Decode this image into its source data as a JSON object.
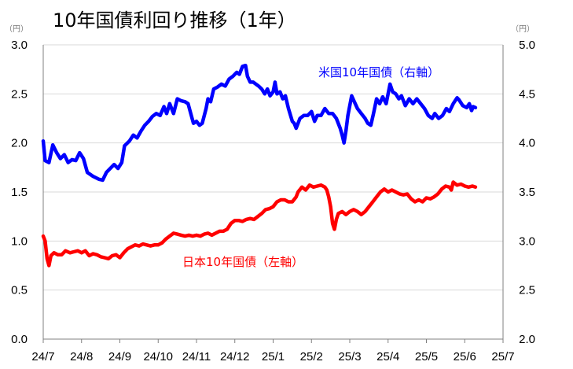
{
  "chart_data": {
    "type": "line",
    "title": "10年国債利回り推移（1年）",
    "left_unit": "（円）",
    "right_unit": "（円）",
    "y_left": {
      "min": 0.0,
      "max": 3.0,
      "ticks": [
        "0.0",
        "0.5",
        "1.0",
        "1.5",
        "2.0",
        "2.5",
        "3.0"
      ]
    },
    "y_right": {
      "min": 2.0,
      "max": 5.0,
      "ticks": [
        "2.0",
        "2.5",
        "3.0",
        "3.5",
        "4.0",
        "4.5",
        "5.0"
      ]
    },
    "x_ticks": [
      "24/7",
      "24/8",
      "24/9",
      "24/10",
      "24/11",
      "24/12",
      "25/1",
      "25/2",
      "25/3",
      "25/4",
      "25/5",
      "25/6",
      "25/7"
    ],
    "grid": true,
    "legend": "inline",
    "series": [
      {
        "name": "米国10年国債（右軸）",
        "axis": "right",
        "color": "#0000ff",
        "points": [
          [
            0.0,
            4.02
          ],
          [
            0.05,
            3.82
          ],
          [
            0.15,
            3.8
          ],
          [
            0.25,
            3.98
          ],
          [
            0.35,
            3.9
          ],
          [
            0.45,
            3.84
          ],
          [
            0.55,
            3.88
          ],
          [
            0.65,
            3.8
          ],
          [
            0.75,
            3.83
          ],
          [
            0.85,
            3.82
          ],
          [
            0.95,
            3.9
          ],
          [
            1.05,
            3.84
          ],
          [
            1.15,
            3.7
          ],
          [
            1.3,
            3.66
          ],
          [
            1.45,
            3.63
          ],
          [
            1.55,
            3.62
          ],
          [
            1.65,
            3.7
          ],
          [
            1.75,
            3.74
          ],
          [
            1.85,
            3.78
          ],
          [
            1.95,
            3.74
          ],
          [
            2.05,
            3.8
          ],
          [
            2.12,
            3.97
          ],
          [
            2.25,
            4.02
          ],
          [
            2.35,
            4.08
          ],
          [
            2.45,
            4.05
          ],
          [
            2.55,
            4.12
          ],
          [
            2.65,
            4.18
          ],
          [
            2.75,
            4.22
          ],
          [
            2.85,
            4.27
          ],
          [
            2.95,
            4.3
          ],
          [
            3.05,
            4.28
          ],
          [
            3.15,
            4.37
          ],
          [
            3.22,
            4.3
          ],
          [
            3.3,
            4.4
          ],
          [
            3.4,
            4.3
          ],
          [
            3.5,
            4.45
          ],
          [
            3.6,
            4.43
          ],
          [
            3.7,
            4.42
          ],
          [
            3.78,
            4.4
          ],
          [
            3.85,
            4.3
          ],
          [
            3.92,
            4.2
          ],
          [
            4.0,
            4.22
          ],
          [
            4.08,
            4.18
          ],
          [
            4.15,
            4.2
          ],
          [
            4.25,
            4.35
          ],
          [
            4.3,
            4.45
          ],
          [
            4.37,
            4.42
          ],
          [
            4.45,
            4.55
          ],
          [
            4.55,
            4.57
          ],
          [
            4.65,
            4.6
          ],
          [
            4.75,
            4.58
          ],
          [
            4.85,
            4.65
          ],
          [
            4.95,
            4.68
          ],
          [
            5.05,
            4.72
          ],
          [
            5.12,
            4.7
          ],
          [
            5.2,
            4.78
          ],
          [
            5.28,
            4.79
          ],
          [
            5.33,
            4.68
          ],
          [
            5.4,
            4.62
          ],
          [
            5.48,
            4.62
          ],
          [
            5.55,
            4.6
          ],
          [
            5.62,
            4.58
          ],
          [
            5.7,
            4.55
          ],
          [
            5.78,
            4.5
          ],
          [
            5.85,
            4.55
          ],
          [
            5.92,
            4.48
          ],
          [
            6.0,
            4.52
          ],
          [
            6.05,
            4.62
          ],
          [
            6.1,
            4.5
          ],
          [
            6.18,
            4.52
          ],
          [
            6.25,
            4.45
          ],
          [
            6.32,
            4.48
          ],
          [
            6.4,
            4.35
          ],
          [
            6.5,
            4.22
          ],
          [
            6.55,
            4.2
          ],
          [
            6.6,
            4.15
          ],
          [
            6.7,
            4.25
          ],
          [
            6.8,
            4.28
          ],
          [
            6.9,
            4.28
          ],
          [
            7.0,
            4.32
          ],
          [
            7.08,
            4.22
          ],
          [
            7.15,
            4.28
          ],
          [
            7.25,
            4.28
          ],
          [
            7.35,
            4.35
          ],
          [
            7.45,
            4.3
          ],
          [
            7.55,
            4.3
          ],
          [
            7.65,
            4.25
          ],
          [
            7.75,
            4.15
          ],
          [
            7.8,
            4.08
          ],
          [
            7.85,
            4.0
          ],
          [
            7.9,
            4.12
          ],
          [
            7.95,
            4.28
          ],
          [
            8.05,
            4.48
          ],
          [
            8.12,
            4.42
          ],
          [
            8.2,
            4.35
          ],
          [
            8.3,
            4.3
          ],
          [
            8.4,
            4.25
          ],
          [
            8.47,
            4.2
          ],
          [
            8.55,
            4.18
          ],
          [
            8.62,
            4.3
          ],
          [
            8.7,
            4.45
          ],
          [
            8.78,
            4.4
          ],
          [
            8.86,
            4.47
          ],
          [
            8.95,
            4.4
          ],
          [
            9.05,
            4.6
          ],
          [
            9.12,
            4.52
          ],
          [
            9.2,
            4.5
          ],
          [
            9.28,
            4.45
          ],
          [
            9.35,
            4.48
          ],
          [
            9.45,
            4.38
          ],
          [
            9.55,
            4.45
          ],
          [
            9.65,
            4.4
          ],
          [
            9.75,
            4.45
          ],
          [
            9.85,
            4.4
          ],
          [
            9.95,
            4.35
          ],
          [
            10.05,
            4.28
          ],
          [
            10.15,
            4.25
          ],
          [
            10.22,
            4.3
          ],
          [
            10.32,
            4.25
          ],
          [
            10.42,
            4.28
          ],
          [
            10.52,
            4.35
          ],
          [
            10.6,
            4.32
          ],
          [
            10.7,
            4.4
          ],
          [
            10.8,
            4.46
          ],
          [
            10.85,
            4.44
          ],
          [
            10.95,
            4.38
          ],
          [
            11.05,
            4.36
          ],
          [
            11.12,
            4.4
          ],
          [
            11.18,
            4.33
          ],
          [
            11.22,
            4.37
          ],
          [
            11.28,
            4.36
          ]
        ]
      },
      {
        "name": "日本10年国債（左軸）",
        "axis": "left",
        "color": "#ff0000",
        "points": [
          [
            0.0,
            1.05
          ],
          [
            0.05,
            1.0
          ],
          [
            0.1,
            0.82
          ],
          [
            0.15,
            0.75
          ],
          [
            0.2,
            0.85
          ],
          [
            0.28,
            0.88
          ],
          [
            0.38,
            0.86
          ],
          [
            0.48,
            0.86
          ],
          [
            0.58,
            0.9
          ],
          [
            0.7,
            0.88
          ],
          [
            0.8,
            0.89
          ],
          [
            0.9,
            0.9
          ],
          [
            1.0,
            0.88
          ],
          [
            1.1,
            0.9
          ],
          [
            1.2,
            0.85
          ],
          [
            1.3,
            0.87
          ],
          [
            1.4,
            0.86
          ],
          [
            1.5,
            0.84
          ],
          [
            1.6,
            0.83
          ],
          [
            1.7,
            0.82
          ],
          [
            1.8,
            0.85
          ],
          [
            1.9,
            0.86
          ],
          [
            2.0,
            0.83
          ],
          [
            2.1,
            0.88
          ],
          [
            2.2,
            0.92
          ],
          [
            2.3,
            0.94
          ],
          [
            2.4,
            0.96
          ],
          [
            2.5,
            0.95
          ],
          [
            2.6,
            0.97
          ],
          [
            2.7,
            0.96
          ],
          [
            2.8,
            0.95
          ],
          [
            2.9,
            0.96
          ],
          [
            3.0,
            0.96
          ],
          [
            3.1,
            0.98
          ],
          [
            3.2,
            1.02
          ],
          [
            3.3,
            1.05
          ],
          [
            3.4,
            1.08
          ],
          [
            3.5,
            1.07
          ],
          [
            3.6,
            1.06
          ],
          [
            3.7,
            1.05
          ],
          [
            3.8,
            1.06
          ],
          [
            3.9,
            1.05
          ],
          [
            4.0,
            1.06
          ],
          [
            4.1,
            1.05
          ],
          [
            4.2,
            1.07
          ],
          [
            4.3,
            1.08
          ],
          [
            4.4,
            1.06
          ],
          [
            4.5,
            1.08
          ],
          [
            4.6,
            1.1
          ],
          [
            4.7,
            1.1
          ],
          [
            4.8,
            1.12
          ],
          [
            4.9,
            1.18
          ],
          [
            5.0,
            1.21
          ],
          [
            5.1,
            1.21
          ],
          [
            5.2,
            1.2
          ],
          [
            5.3,
            1.22
          ],
          [
            5.4,
            1.23
          ],
          [
            5.5,
            1.22
          ],
          [
            5.6,
            1.25
          ],
          [
            5.7,
            1.28
          ],
          [
            5.8,
            1.32
          ],
          [
            5.9,
            1.33
          ],
          [
            6.0,
            1.35
          ],
          [
            6.1,
            1.4
          ],
          [
            6.2,
            1.42
          ],
          [
            6.3,
            1.42
          ],
          [
            6.4,
            1.4
          ],
          [
            6.5,
            1.4
          ],
          [
            6.6,
            1.45
          ],
          [
            6.65,
            1.5
          ],
          [
            6.75,
            1.55
          ],
          [
            6.85,
            1.52
          ],
          [
            6.95,
            1.57
          ],
          [
            7.05,
            1.55
          ],
          [
            7.15,
            1.56
          ],
          [
            7.25,
            1.57
          ],
          [
            7.35,
            1.55
          ],
          [
            7.4,
            1.52
          ],
          [
            7.45,
            1.45
          ],
          [
            7.5,
            1.35
          ],
          [
            7.55,
            1.18
          ],
          [
            7.6,
            1.12
          ],
          [
            7.65,
            1.22
          ],
          [
            7.7,
            1.28
          ],
          [
            7.8,
            1.3
          ],
          [
            7.9,
            1.27
          ],
          [
            8.0,
            1.3
          ],
          [
            8.1,
            1.32
          ],
          [
            8.2,
            1.3
          ],
          [
            8.3,
            1.27
          ],
          [
            8.4,
            1.3
          ],
          [
            8.5,
            1.35
          ],
          [
            8.6,
            1.4
          ],
          [
            8.7,
            1.45
          ],
          [
            8.8,
            1.5
          ],
          [
            8.9,
            1.53
          ],
          [
            9.0,
            1.5
          ],
          [
            9.1,
            1.52
          ],
          [
            9.2,
            1.5
          ],
          [
            9.3,
            1.48
          ],
          [
            9.4,
            1.47
          ],
          [
            9.5,
            1.48
          ],
          [
            9.6,
            1.43
          ],
          [
            9.7,
            1.4
          ],
          [
            9.8,
            1.42
          ],
          [
            9.9,
            1.4
          ],
          [
            10.0,
            1.44
          ],
          [
            10.1,
            1.43
          ],
          [
            10.2,
            1.45
          ],
          [
            10.3,
            1.48
          ],
          [
            10.4,
            1.53
          ],
          [
            10.5,
            1.56
          ],
          [
            10.6,
            1.55
          ],
          [
            10.65,
            1.52
          ],
          [
            10.7,
            1.6
          ],
          [
            10.8,
            1.57
          ],
          [
            10.9,
            1.58
          ],
          [
            11.0,
            1.56
          ],
          [
            11.1,
            1.55
          ],
          [
            11.2,
            1.56
          ],
          [
            11.28,
            1.55
          ]
        ]
      }
    ]
  }
}
